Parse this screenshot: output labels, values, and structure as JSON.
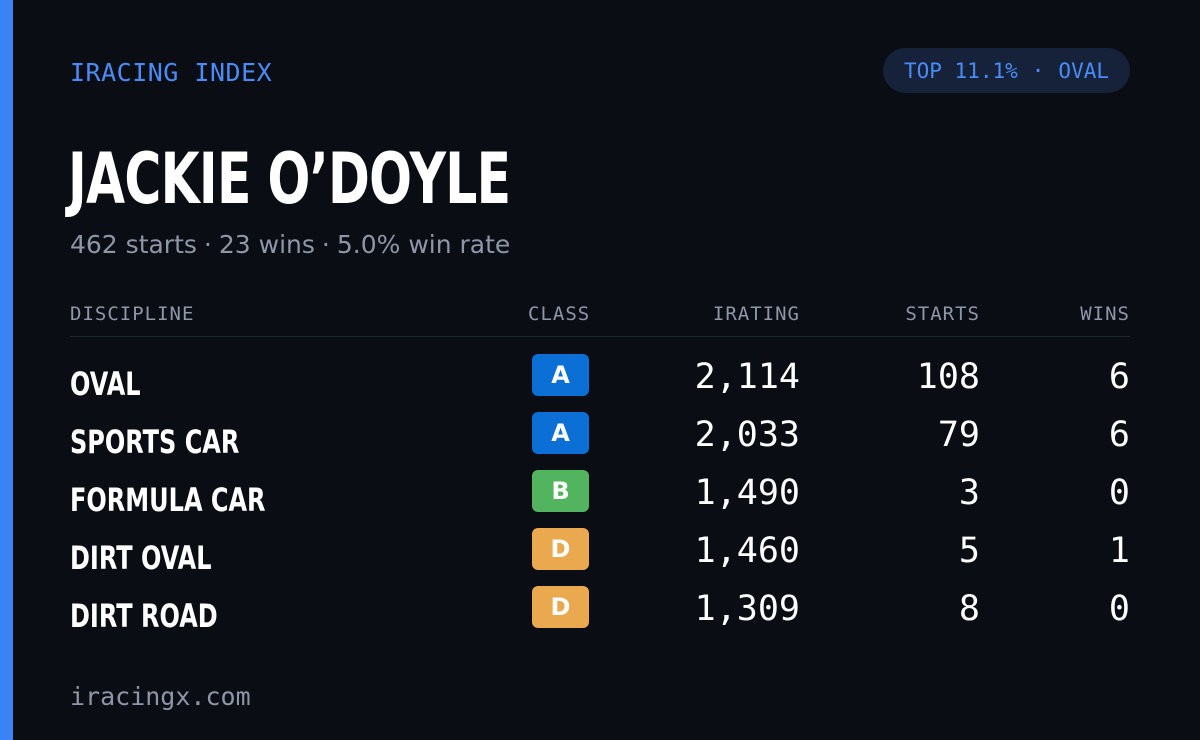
{
  "brand": "IRACING INDEX",
  "badge": {
    "rank": "TOP 11.1%",
    "separator": "·",
    "discipline": "OVAL"
  },
  "driver": {
    "name": "JACKIE O’DOYLE",
    "starts_text": "462 starts",
    "wins_text": "23 wins",
    "winrate_text": "5.0% win rate",
    "separator": "·"
  },
  "table": {
    "headers": {
      "discipline": "DISCIPLINE",
      "class": "CLASS",
      "irating": "IRATING",
      "starts": "STARTS",
      "wins": "WINS"
    },
    "rows": [
      {
        "discipline": "OVAL",
        "class": "A",
        "irating": "2,114",
        "starts": "108",
        "wins": "6"
      },
      {
        "discipline": "SPORTS CAR",
        "class": "A",
        "irating": "2,033",
        "starts": "79",
        "wins": "6"
      },
      {
        "discipline": "FORMULA CAR",
        "class": "B",
        "irating": "1,490",
        "starts": "3",
        "wins": "0"
      },
      {
        "discipline": "DIRT OVAL",
        "class": "D",
        "irating": "1,460",
        "starts": "5",
        "wins": "1"
      },
      {
        "discipline": "DIRT ROAD",
        "class": "D",
        "irating": "1,309",
        "starts": "8",
        "wins": "0"
      }
    ]
  },
  "class_colors": {
    "A": "#0b6fd6",
    "B": "#52b45e",
    "D": "#eaa84f"
  },
  "colors": {
    "accent": "#3b82f6",
    "background": "#0a0d14"
  },
  "footer": "iracingx.com"
}
